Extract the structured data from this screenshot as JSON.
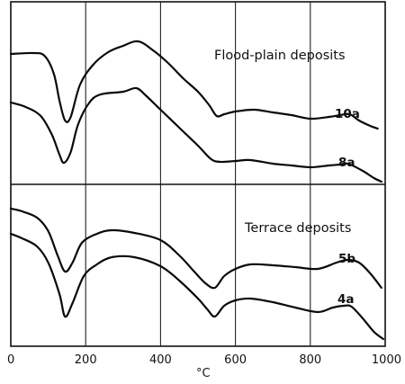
{
  "chart_data": {
    "type": "line",
    "xlabel": "°C",
    "xlim": [
      0,
      1000
    ],
    "x_ticks": [
      "0",
      "200",
      "400",
      "600",
      "800",
      "1000"
    ],
    "grid": true,
    "panels": [
      {
        "title": "Flood-plain deposits",
        "series": [
          {
            "name": "10a",
            "points": [
              [
                0,
                58
              ],
              [
                60,
                57
              ],
              [
                90,
                60
              ],
              [
                115,
                80
              ],
              [
                130,
                110
              ],
              [
                145,
                132
              ],
              [
                160,
                128
              ],
              [
                185,
                92
              ],
              [
                220,
                70
              ],
              [
                260,
                56
              ],
              [
                300,
                49
              ],
              [
                340,
                44
              ],
              [
                380,
                54
              ],
              [
                420,
                68
              ],
              [
                460,
                85
              ],
              [
                500,
                100
              ],
              [
                530,
                115
              ],
              [
                550,
                127
              ],
              [
                570,
                125
              ],
              [
                600,
                122
              ],
              [
                650,
                120
              ],
              [
                700,
                123
              ],
              [
                750,
                126
              ],
              [
                800,
                130
              ],
              [
                850,
                128
              ],
              [
                880,
                126
              ],
              [
                905,
                125
              ],
              [
                930,
                132
              ],
              [
                960,
                138
              ],
              [
                980,
                141
              ]
            ]
          },
          {
            "name": "8a",
            "points": [
              [
                0,
                112
              ],
              [
                40,
                117
              ],
              [
                80,
                127
              ],
              [
                110,
                148
              ],
              [
                130,
                170
              ],
              [
                142,
                179
              ],
              [
                160,
                167
              ],
              [
                180,
                136
              ],
              [
                210,
                112
              ],
              [
                240,
                103
              ],
              [
                300,
                100
              ],
              [
                335,
                96
              ],
              [
                360,
                104
              ],
              [
                400,
                120
              ],
              [
                450,
                140
              ],
              [
                500,
                160
              ],
              [
                535,
                175
              ],
              [
                560,
                178
              ],
              [
                600,
                177
              ],
              [
                640,
                176
              ],
              [
                700,
                180
              ],
              [
                750,
                182
              ],
              [
                800,
                184
              ],
              [
                850,
                182
              ],
              [
                880,
                181
              ],
              [
                900,
                180
              ],
              [
                940,
                188
              ],
              [
                970,
                196
              ],
              [
                990,
                200
              ]
            ]
          }
        ]
      },
      {
        "title": "Terrace deposits",
        "series": [
          {
            "name": "5b",
            "points": [
              [
                0,
                230
              ],
              [
                30,
                233
              ],
              [
                70,
                240
              ],
              [
                100,
                255
              ],
              [
                125,
                282
              ],
              [
                145,
                300
              ],
              [
                165,
                290
              ],
              [
                190,
                268
              ],
              [
                230,
                258
              ],
              [
                270,
                254
              ],
              [
                330,
                257
              ],
              [
                400,
                265
              ],
              [
                450,
                282
              ],
              [
                490,
                300
              ],
              [
                520,
                313
              ],
              [
                545,
                318
              ],
              [
                570,
                305
              ],
              [
                600,
                297
              ],
              [
                640,
                292
              ],
              [
                700,
                293
              ],
              [
                760,
                295
              ],
              [
                820,
                297
              ],
              [
                870,
                290
              ],
              [
                900,
                287
              ],
              [
                930,
                290
              ],
              [
                960,
                302
              ],
              [
                990,
                318
              ]
            ]
          },
          {
            "name": "4a",
            "points": [
              [
                0,
                258
              ],
              [
                30,
                263
              ],
              [
                70,
                272
              ],
              [
                100,
                290
              ],
              [
                130,
                325
              ],
              [
                145,
                350
              ],
              [
                165,
                335
              ],
              [
                195,
                305
              ],
              [
                230,
                292
              ],
              [
                270,
                284
              ],
              [
                330,
                284
              ],
              [
                400,
                294
              ],
              [
                450,
                310
              ],
              [
                500,
                330
              ],
              [
                525,
                342
              ],
              [
                545,
                350
              ],
              [
                570,
                338
              ],
              [
                600,
                332
              ],
              [
                640,
                330
              ],
              [
                700,
                334
              ],
              [
                760,
                340
              ],
              [
                820,
                345
              ],
              [
                860,
                340
              ],
              [
                890,
                338
              ],
              [
                910,
                339
              ],
              [
                940,
                352
              ],
              [
                970,
                367
              ],
              [
                995,
                375
              ]
            ]
          }
        ]
      }
    ]
  }
}
